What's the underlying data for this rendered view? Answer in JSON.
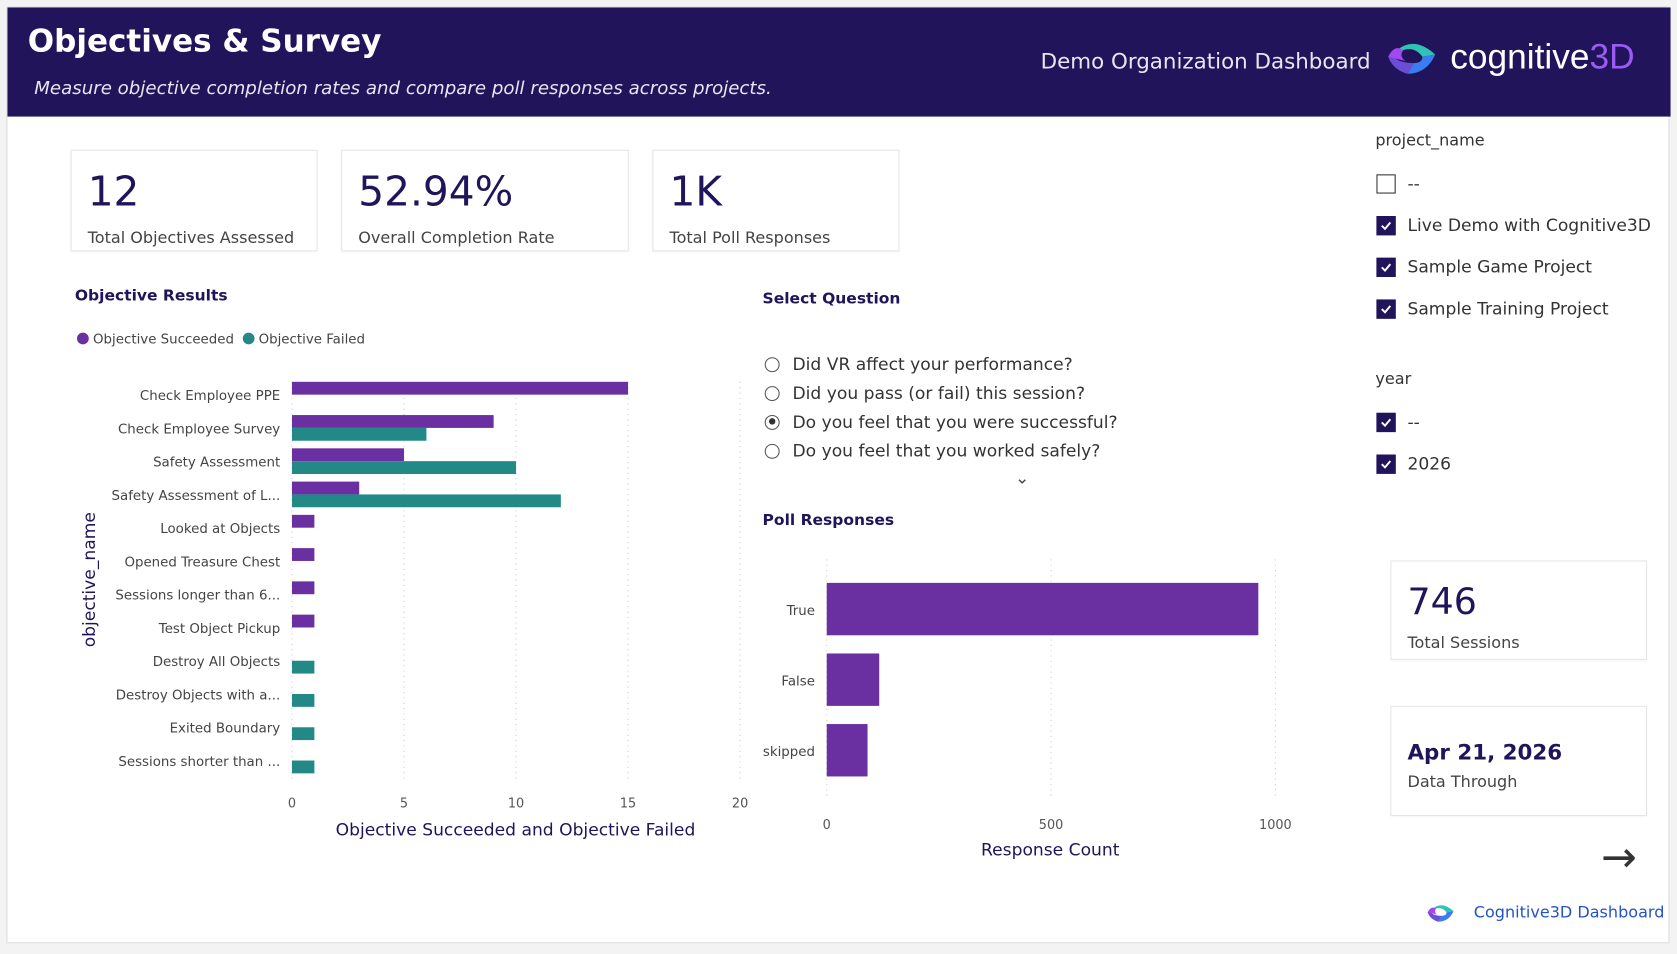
{
  "header": {
    "title": "Objectives & Survey",
    "subtitle": "Measure objective completion rates and compare poll responses across projects.",
    "org": "Demo Organization Dashboard",
    "logo_text": "cognitive",
    "logo_text_accent": "3D"
  },
  "kpis": [
    {
      "value": "12",
      "label": "Total Objectives Assessed"
    },
    {
      "value": "52.94%",
      "label": "Overall Completion Rate"
    },
    {
      "value": "1K",
      "label": "Total Poll Responses"
    }
  ],
  "objectives": {
    "title": "Objective Results",
    "legend": [
      "Objective Succeeded",
      "Objective Failed"
    ]
  },
  "question": {
    "title": "Select Question",
    "options": [
      {
        "label": "Did VR affect your performance?",
        "selected": false
      },
      {
        "label": "Did you pass (or fail) this session?",
        "selected": false
      },
      {
        "label": "Do you feel that you were successful?",
        "selected": true
      },
      {
        "label": "Do you feel that you worked safely?",
        "selected": false
      }
    ]
  },
  "poll": {
    "title": "Poll Responses"
  },
  "filters": {
    "project_label": "project_name",
    "projects": [
      {
        "label": "--",
        "checked": false
      },
      {
        "label": "Live Demo with Cognitive3D",
        "checked": true
      },
      {
        "label": "Sample Game Project",
        "checked": true
      },
      {
        "label": "Sample Training Project",
        "checked": true
      }
    ],
    "year_label": "year",
    "years": [
      {
        "label": "--",
        "checked": true
      },
      {
        "label": "2026",
        "checked": true
      }
    ]
  },
  "sessions": {
    "value": "746",
    "label": "Total Sessions"
  },
  "through": {
    "value": "Apr 21, 2026",
    "label": "Data Through"
  },
  "footer": {
    "link": "Cognitive3D Dashboard"
  },
  "colors": {
    "header": "#21145a",
    "succeeded": "#6a2fa0",
    "failed": "#228987"
  },
  "chart_data": [
    {
      "type": "bar",
      "orientation": "horizontal",
      "title": "Objective Results",
      "xlabel": "Objective Succeeded and Objective Failed",
      "ylabel": "objective_name",
      "xlim": [
        0,
        20
      ],
      "xticks": [
        0,
        5,
        10,
        15,
        20
      ],
      "legend": "top-left",
      "categories": [
        "Check Employee PPE",
        "Check Employee Survey",
        "Safety Assessment",
        "Safety Assessment of L...",
        "Looked at Objects",
        "Opened Treasure Chest",
        "Sessions longer than 6...",
        "Test Object Pickup",
        "Destroy All Objects",
        "Destroy Objects with a...",
        "Exited Boundary",
        "Sessions shorter than ..."
      ],
      "series": [
        {
          "name": "Objective Succeeded",
          "values": [
            15,
            9,
            5,
            3,
            1,
            1,
            1,
            1,
            null,
            null,
            null,
            null
          ]
        },
        {
          "name": "Objective Failed",
          "values": [
            null,
            6,
            10,
            12,
            null,
            null,
            null,
            null,
            1,
            1,
            1,
            1
          ]
        }
      ]
    },
    {
      "type": "bar",
      "orientation": "horizontal",
      "title": "Poll Responses",
      "xlabel": "Response Count",
      "ylabel": "",
      "xlim": [
        0,
        1000
      ],
      "xticks": [
        0,
        500,
        1000
      ],
      "categories": [
        "True",
        "False",
        "skipped"
      ],
      "values": [
        962,
        117,
        91
      ]
    }
  ]
}
